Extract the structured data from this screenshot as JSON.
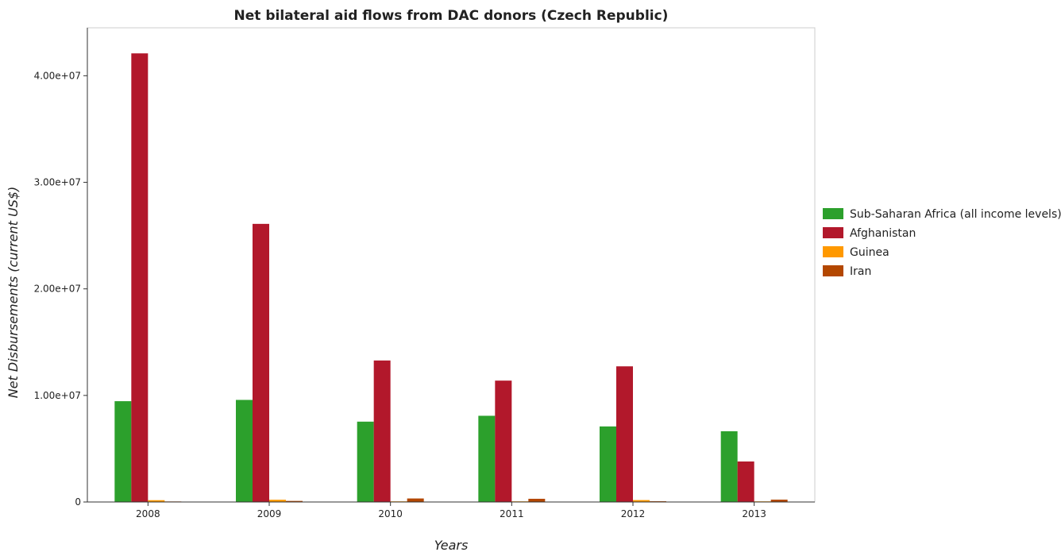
{
  "chart_data": {
    "type": "bar",
    "title": "Net bilateral aid flows from DAC donors (Czech Republic)",
    "xlabel": "Years",
    "ylabel": "Net Disbursements (current US$)",
    "categories": [
      "2008",
      "2009",
      "2010",
      "2011",
      "2012",
      "2013"
    ],
    "ylim": [
      0,
      44500000
    ],
    "yticks": [
      0,
      10000000,
      20000000,
      30000000,
      40000000
    ],
    "ytick_labels": [
      "0",
      "1.00e+07",
      "2.00e+07",
      "3.00e+07",
      "4.00e+07"
    ],
    "grid": false,
    "legend_position": "right",
    "series": [
      {
        "name": "Sub-Saharan Africa (all income levels)",
        "color": "#2ca02c",
        "values": [
          9460000,
          9580000,
          7540000,
          8090000,
          7090000,
          6640000
        ]
      },
      {
        "name": "Afghanistan",
        "color": "#b2182b",
        "values": [
          42100000,
          26100000,
          13280000,
          11390000,
          12730000,
          3800000
        ]
      },
      {
        "name": "Guinea",
        "color": "#ff9900",
        "values": [
          170000,
          210000,
          60000,
          60000,
          180000,
          60000
        ]
      },
      {
        "name": "Iran",
        "color": "#b34700",
        "values": [
          50000,
          100000,
          330000,
          300000,
          70000,
          220000
        ]
      }
    ]
  }
}
